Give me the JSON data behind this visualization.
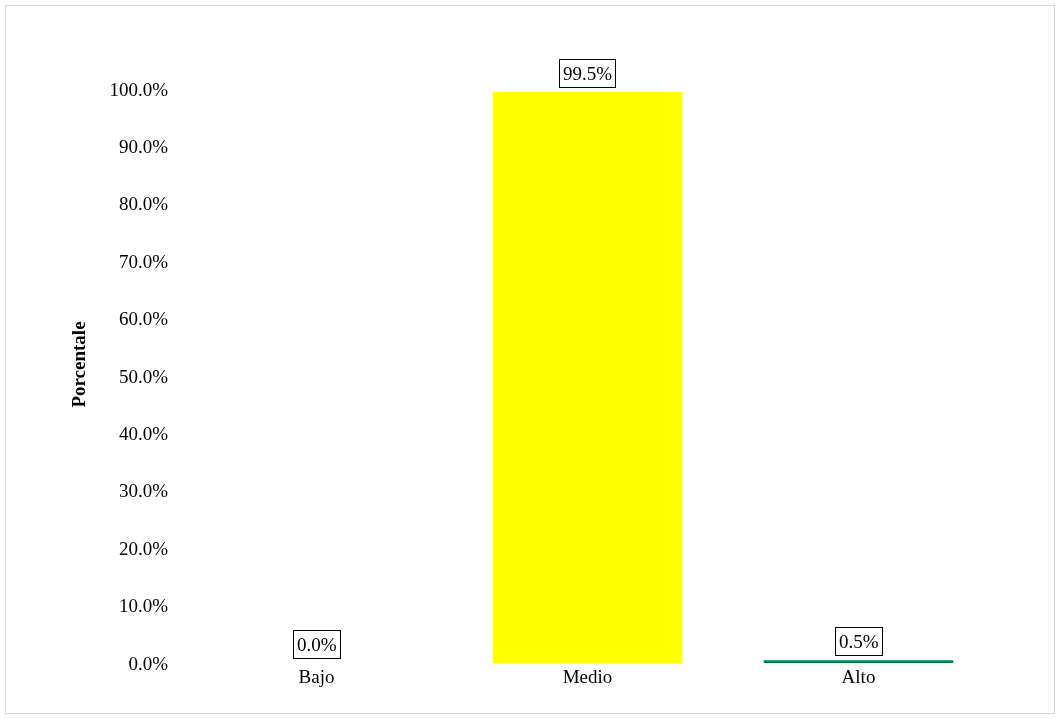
{
  "chart_data": {
    "type": "bar",
    "ylabel": "Porcentale",
    "categories": [
      "Bajo",
      "Medio",
      "Alto"
    ],
    "values": [
      0,
      99.5,
      0.5
    ],
    "colors": [
      "#c00000",
      "#ffff00",
      "#00884a"
    ],
    "value_labels": [
      "0.0%",
      "99.5%",
      "0.5%"
    ],
    "ylim": [
      0,
      104
    ],
    "yticks": [
      {
        "value": 0,
        "label": "0.0%"
      },
      {
        "value": 10,
        "label": "10.0%"
      },
      {
        "value": 20,
        "label": "20.0%"
      },
      {
        "value": 30,
        "label": "30.0%"
      },
      {
        "value": 40,
        "label": "40.0%"
      },
      {
        "value": 50,
        "label": "50.0%"
      },
      {
        "value": 60,
        "label": "60.0%"
      },
      {
        "value": 70,
        "label": "70.0%"
      },
      {
        "value": 80,
        "label": "80.0%"
      },
      {
        "value": 90,
        "label": "90.0%"
      },
      {
        "value": 100,
        "label": "100.0%"
      }
    ],
    "grid": false
  }
}
